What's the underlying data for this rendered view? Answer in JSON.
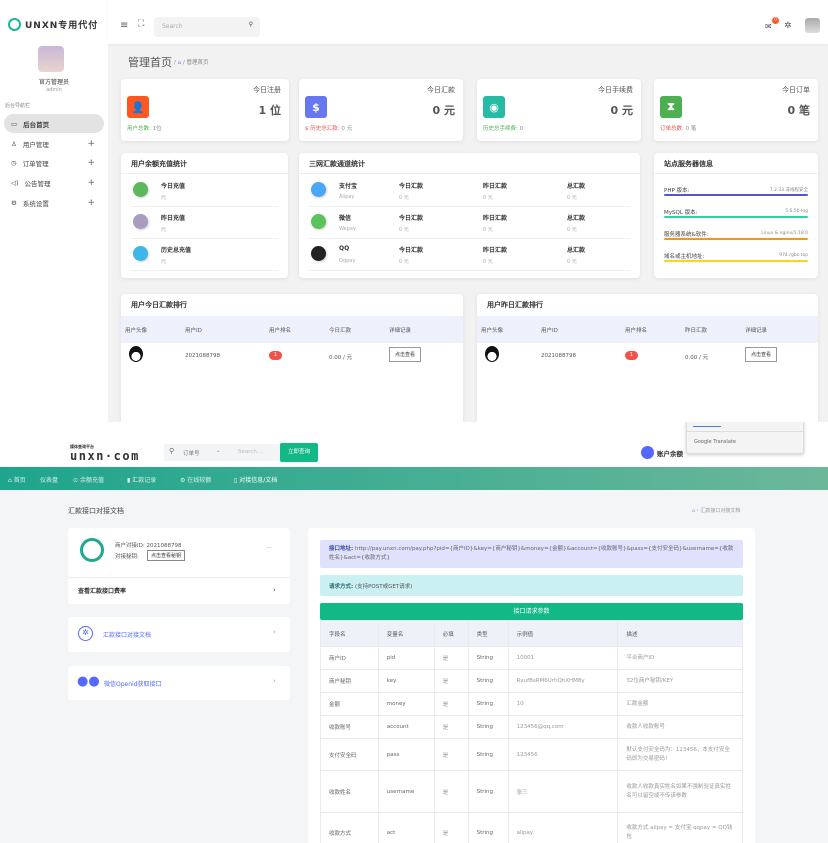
{
  "admin": {
    "logo": "UNXN专用代付",
    "user_name": "官方管理员",
    "user_role": "admin",
    "nav_section": "后台导航栏",
    "nav": [
      {
        "label": "后台首页",
        "icon": "monitor-icon"
      },
      {
        "label": "用户管理",
        "icon": "user-icon"
      },
      {
        "label": "订单管理",
        "icon": "clock-icon"
      },
      {
        "label": "公告管理",
        "icon": "speaker-icon"
      },
      {
        "label": "系统设置",
        "icon": "gear-icon"
      }
    ],
    "search_placeholder": "Search",
    "mail_badge": "0",
    "page_title": "管理首页",
    "breadcrumb_sep": "/",
    "breadcrumb_current": "管理首页",
    "stats": [
      {
        "title": "今日注册",
        "value": "1 位",
        "icon": "user-icon",
        "color": "#ff5722",
        "foot_label": "用户总数:",
        "foot_value": "1位",
        "foot_color": "#4caf50"
      },
      {
        "title": "今日汇款",
        "value": "0 元",
        "icon": "dollar-icon",
        "color": "#6777ef",
        "foot_label": "$ 历史总汇款:",
        "foot_value": "0 元",
        "foot_color": "#f4504a"
      },
      {
        "title": "今日手续费",
        "value": "0 元",
        "icon": "coin-icon",
        "color": "#26bba4",
        "foot_label": "历史总手续费:",
        "foot_value": "0",
        "foot_color": "#4caf50"
      },
      {
        "title": "今日订单",
        "value": "0 笔",
        "icon": "hourglass-icon",
        "color": "#4caf50",
        "foot_label": "订单总数:",
        "foot_value": "0 笔",
        "foot_color": "#f4504a"
      }
    ],
    "recharge": {
      "title": "用户余额充值统计",
      "rows": [
        {
          "label": "今日充值",
          "value": "元",
          "color": "#5cb85c"
        },
        {
          "label": "昨日充值",
          "value": "元",
          "color": "#a99cbf"
        },
        {
          "label": "历史总充值",
          "value": "元",
          "color": "#3fb6e8"
        }
      ]
    },
    "channels": {
      "title": "三网汇款通道统计",
      "col1": "今日汇款",
      "col2": "昨日汇款",
      "col3": "总汇款",
      "rows": [
        {
          "name": "支付宝",
          "sub": "Alipay",
          "v1": "0 元",
          "v2": "0 元",
          "v3": "0 元",
          "color": "#4ba6f4",
          "icon": "alipay-icon"
        },
        {
          "name": "微信",
          "sub": "Wepay",
          "v1": "0 元",
          "v2": "0 元",
          "v3": "0 元",
          "color": "#5cc35c",
          "icon": "wechat-icon"
        },
        {
          "name": "QQ",
          "sub": "Qqpay",
          "v1": "0 元",
          "v2": "0 元",
          "v3": "0 元",
          "color": "#222",
          "icon": "qq-icon"
        }
      ]
    },
    "server": {
      "title": "站点服务器信息",
      "rows": [
        {
          "label": "PHP 版本:",
          "value": "7.2.33 非线程安全",
          "color": "#5558c7"
        },
        {
          "label": "MySQL 版本:",
          "value": "5.6.50-log",
          "color": "#31d1a3"
        },
        {
          "label": "服务器系统&软件:",
          "value": "Linux & nginx/1.18.0",
          "color": "#f7941d"
        },
        {
          "label": "域名或主机地址:",
          "value": "974.rgbc.top",
          "color": "#f9d423"
        }
      ]
    },
    "rank_today": {
      "title": "用户今日汇款排行",
      "headers": [
        "用户头像",
        "用户ID",
        "用户排名",
        "今日汇款",
        "详细记录"
      ],
      "row": {
        "id": "2021088798",
        "rank": "1",
        "amount": "0.00 / 元",
        "button": "点击查看"
      }
    },
    "rank_yesterday": {
      "title": "用户昨日汇款排行",
      "headers": [
        "用户头像",
        "用户ID",
        "用户排名",
        "昨日汇款",
        "详细记录"
      ],
      "row": {
        "id": "2021088798",
        "rank": "1",
        "amount": "0.00 / 元",
        "button": "点击查看"
      }
    }
  },
  "merchant": {
    "logo_small": "媒体查询平台",
    "logo": "unxn·com",
    "search_type": "订单号",
    "search_placeholder": "Search...",
    "search_button": "立即查询",
    "balance_label": "账户余额",
    "translate_label": "Google Translate",
    "nav": [
      "首页",
      "仪表盘",
      "余额充值",
      "汇款记录",
      "在线较额",
      "对接信息/文档"
    ],
    "page_title": "汇款接口对接文档",
    "breadcrumb": "汇款接口对接文档",
    "merchant_id_label": "商户对接ID:",
    "merchant_id": "2021088798",
    "key_label": "对接秘钥:",
    "key_button": "点击查看秘钥",
    "more": "···",
    "rate_link": "查看汇款接口费率",
    "doc_link": "汇款接口对接文档",
    "openid_link": "微信Openid获取接口",
    "api_url_label": "接口地址:",
    "api_url": "http://pay.unxn.com/pay.php?pid={商户ID}&key={商户秘钥}&money={金额}&account={收款账号}&pass={支付安全码}&username={收款姓名}&act={收款方式}",
    "method_label": "请求方式:",
    "method": "(支持POST或GET请求)",
    "params_button": "接口请求参数",
    "table": {
      "headers": [
        "字段名",
        "变量名",
        "必填",
        "类型",
        "示例值",
        "描述"
      ],
      "rows": [
        [
          "商户ID",
          "pid",
          "是",
          "String",
          "10001",
          "平台商户ID"
        ],
        [
          "商户秘钥",
          "key",
          "是",
          "String",
          "RxufBsRM6UrhQhXHM8y",
          "32位商户秘钥/KEY"
        ],
        [
          "金额",
          "money",
          "是",
          "String",
          "10",
          "汇款金额"
        ],
        [
          "收款账号",
          "account",
          "是",
          "String",
          "123456@qq.com",
          "收款人收款账号"
        ],
        [
          "支付安全码",
          "pass",
          "是",
          "String",
          "123456",
          "默认支付安全码为：123456，本支付安全码即为交易密码！"
        ],
        [
          "收款姓名",
          "username",
          "是",
          "String",
          "张三",
          "收款人收款真实姓名如果不强制验证真实姓名可以留空或不传该参数"
        ],
        [
          "收款方式",
          "act",
          "是",
          "String",
          "alipay",
          "收款方式 alipay = 支付宝 qqpay = QQ钱包"
        ]
      ]
    }
  }
}
